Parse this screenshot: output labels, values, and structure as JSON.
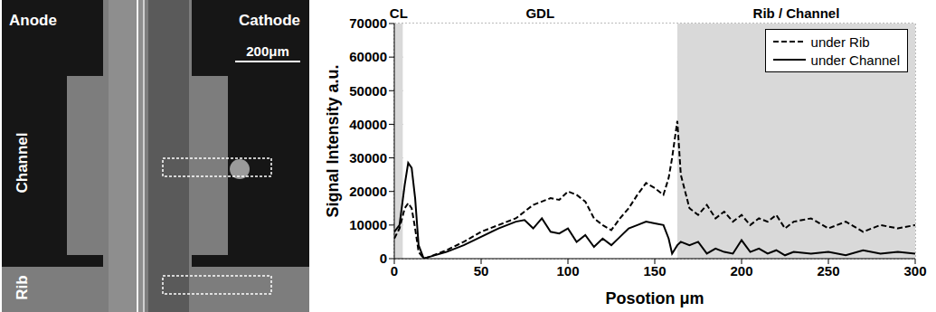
{
  "image": {
    "labels": {
      "anode": "Anode",
      "cathode": "Cathode",
      "channel": "Channel",
      "rib": "Rib",
      "scale_bar": "200μm"
    }
  },
  "chart_data": {
    "type": "line",
    "xlabel": "Posotion μm",
    "ylabel": "Signal Intensity a.u.",
    "xlim": [
      0,
      300
    ],
    "xticks": [
      0,
      50,
      100,
      150,
      200,
      250,
      300
    ],
    "ylim": [
      0,
      70000
    ],
    "yticks": [
      0,
      10000,
      20000,
      30000,
      40000,
      50000,
      60000,
      70000
    ],
    "grid": true,
    "legend": "upper right",
    "regions": [
      {
        "label": "CL",
        "x": [
          0,
          5
        ],
        "color": "#d9d9d9"
      },
      {
        "label": "GDL",
        "x": [
          5,
          163
        ],
        "color": "#ffffff"
      },
      {
        "label": "Rib / Channel",
        "x": [
          163,
          300
        ],
        "color": "#d9d9d9"
      }
    ],
    "x": [
      0,
      3,
      6,
      8,
      10,
      12,
      14,
      17,
      20,
      30,
      40,
      50,
      60,
      70,
      75,
      80,
      85,
      90,
      95,
      100,
      105,
      110,
      115,
      120,
      125,
      130,
      135,
      140,
      145,
      150,
      155,
      158,
      160,
      163,
      165,
      170,
      175,
      180,
      185,
      190,
      195,
      200,
      205,
      210,
      215,
      220,
      225,
      230,
      240,
      250,
      260,
      270,
      280,
      290,
      300
    ],
    "series": [
      {
        "name": "under Rib",
        "color": "#000000",
        "line_style": "dashed",
        "values": [
          6000,
          9000,
          15000,
          16500,
          15000,
          9000,
          2000,
          0,
          500,
          2500,
          5000,
          8000,
          10000,
          12000,
          14000,
          16000,
          17000,
          18000,
          17500,
          20000,
          19000,
          17000,
          12000,
          10000,
          8500,
          12000,
          15000,
          19000,
          22500,
          21000,
          19000,
          24000,
          30000,
          41000,
          25000,
          15000,
          13000,
          16000,
          12000,
          14000,
          11000,
          13000,
          10000,
          12000,
          11000,
          13000,
          9000,
          11000,
          12000,
          9000,
          11000,
          8000,
          10000,
          9000,
          10000
        ]
      },
      {
        "name": "under Channel",
        "color": "#000000",
        "line_style": "solid",
        "values": [
          8000,
          10000,
          22000,
          28500,
          27000,
          18000,
          4000,
          0,
          500,
          2000,
          4000,
          6500,
          9000,
          11000,
          11500,
          9000,
          12000,
          8000,
          7500,
          9000,
          5000,
          7000,
          3500,
          6000,
          4000,
          6500,
          9000,
          10000,
          11000,
          10500,
          10000,
          6000,
          1500,
          4000,
          5000,
          4000,
          5000,
          1500,
          3000,
          2000,
          1500,
          5500,
          2000,
          3000,
          1500,
          2500,
          1000,
          2000,
          1500,
          2000,
          1000,
          2500,
          1500,
          2000,
          1500
        ]
      }
    ]
  }
}
